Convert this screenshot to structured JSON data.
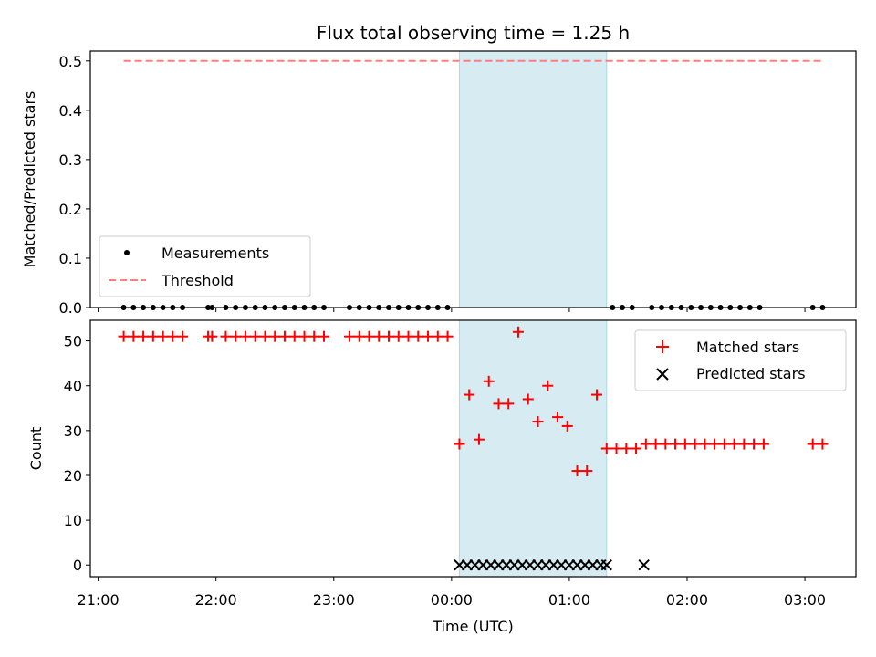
{
  "chart_data": [
    {
      "type": "scatter",
      "title": "Flux total observing time = 1.25 h",
      "ylabel": "Matched/Predicted stars",
      "ylim": [
        0,
        0.52
      ],
      "xlim": [
        "20:56",
        "03:26"
      ],
      "yticks": [
        {
          "value": 0.0,
          "label": "0.0"
        },
        {
          "value": 0.1,
          "label": "0.1"
        },
        {
          "value": 0.2,
          "label": "0.2"
        },
        {
          "value": 0.3,
          "label": "0.3"
        },
        {
          "value": 0.4,
          "label": "0.4"
        },
        {
          "value": 0.5,
          "label": "0.5"
        }
      ],
      "shaded_interval": {
        "start": "00:04",
        "end": "01:19",
        "color": "#add8e6"
      },
      "series": [
        {
          "name": "Measurements",
          "marker": "dot",
          "color": "#000000",
          "points": [
            {
              "x": "21:13",
              "y": 0
            },
            {
              "x": "21:18",
              "y": 0
            },
            {
              "x": "21:23",
              "y": 0
            },
            {
              "x": "21:28",
              "y": 0
            },
            {
              "x": "21:33",
              "y": 0
            },
            {
              "x": "21:38",
              "y": 0
            },
            {
              "x": "21:43",
              "y": 0
            },
            {
              "x": "21:56",
              "y": 0
            },
            {
              "x": "21:58",
              "y": 0
            },
            {
              "x": "22:05",
              "y": 0
            },
            {
              "x": "22:10",
              "y": 0
            },
            {
              "x": "22:15",
              "y": 0
            },
            {
              "x": "22:20",
              "y": 0
            },
            {
              "x": "22:25",
              "y": 0
            },
            {
              "x": "22:30",
              "y": 0
            },
            {
              "x": "22:35",
              "y": 0
            },
            {
              "x": "22:40",
              "y": 0
            },
            {
              "x": "22:45",
              "y": 0
            },
            {
              "x": "22:50",
              "y": 0
            },
            {
              "x": "22:55",
              "y": 0
            },
            {
              "x": "23:08",
              "y": 0
            },
            {
              "x": "23:13",
              "y": 0
            },
            {
              "x": "23:18",
              "y": 0
            },
            {
              "x": "23:23",
              "y": 0
            },
            {
              "x": "23:28",
              "y": 0
            },
            {
              "x": "23:33",
              "y": 0
            },
            {
              "x": "23:38",
              "y": 0
            },
            {
              "x": "23:43",
              "y": 0
            },
            {
              "x": "23:48",
              "y": 0
            },
            {
              "x": "23:53",
              "y": 0
            },
            {
              "x": "23:58",
              "y": 0
            },
            {
              "x": "01:22",
              "y": 0
            },
            {
              "x": "01:27",
              "y": 0
            },
            {
              "x": "01:32",
              "y": 0
            },
            {
              "x": "01:42",
              "y": 0
            },
            {
              "x": "01:47",
              "y": 0
            },
            {
              "x": "01:52",
              "y": 0
            },
            {
              "x": "01:57",
              "y": 0
            },
            {
              "x": "02:02",
              "y": 0
            },
            {
              "x": "02:07",
              "y": 0
            },
            {
              "x": "02:12",
              "y": 0
            },
            {
              "x": "02:17",
              "y": 0
            },
            {
              "x": "02:22",
              "y": 0
            },
            {
              "x": "02:27",
              "y": 0
            },
            {
              "x": "02:32",
              "y": 0
            },
            {
              "x": "02:37",
              "y": 0
            },
            {
              "x": "03:04",
              "y": 0
            },
            {
              "x": "03:09",
              "y": 0
            }
          ]
        },
        {
          "name": "Threshold",
          "marker": "dashed-line",
          "color": "#ff7f7f",
          "points": [
            {
              "x": "21:13",
              "y": 0.5
            },
            {
              "x": "03:09",
              "y": 0.5
            }
          ]
        }
      ],
      "legend": {
        "position": "lower-left"
      }
    },
    {
      "type": "scatter",
      "xlabel": "Time (UTC)",
      "ylabel": "Count",
      "ylim": [
        -2.6,
        54.6
      ],
      "xlim": [
        "20:56",
        "03:26"
      ],
      "yticks": [
        {
          "value": 0,
          "label": "0"
        },
        {
          "value": 10,
          "label": "10"
        },
        {
          "value": 20,
          "label": "20"
        },
        {
          "value": 30,
          "label": "30"
        },
        {
          "value": 40,
          "label": "40"
        },
        {
          "value": 50,
          "label": "50"
        }
      ],
      "xticks": [
        {
          "value": "21:00",
          "label": "21:00"
        },
        {
          "value": "22:00",
          "label": "22:00"
        },
        {
          "value": "23:00",
          "label": "23:00"
        },
        {
          "value": "00:00",
          "label": "00:00"
        },
        {
          "value": "01:00",
          "label": "01:00"
        },
        {
          "value": "02:00",
          "label": "02:00"
        },
        {
          "value": "03:00",
          "label": "03:00"
        }
      ],
      "shaded_interval": {
        "start": "00:04",
        "end": "01:19",
        "color": "#add8e6"
      },
      "series": [
        {
          "name": "Matched stars",
          "marker": "plus",
          "color": "#ff0000",
          "points": [
            {
              "x": "21:13",
              "y": 51
            },
            {
              "x": "21:18",
              "y": 51
            },
            {
              "x": "21:23",
              "y": 51
            },
            {
              "x": "21:28",
              "y": 51
            },
            {
              "x": "21:33",
              "y": 51
            },
            {
              "x": "21:38",
              "y": 51
            },
            {
              "x": "21:43",
              "y": 51
            },
            {
              "x": "21:56",
              "y": 51
            },
            {
              "x": "21:58",
              "y": 51
            },
            {
              "x": "22:05",
              "y": 51
            },
            {
              "x": "22:10",
              "y": 51
            },
            {
              "x": "22:15",
              "y": 51
            },
            {
              "x": "22:20",
              "y": 51
            },
            {
              "x": "22:25",
              "y": 51
            },
            {
              "x": "22:30",
              "y": 51
            },
            {
              "x": "22:35",
              "y": 51
            },
            {
              "x": "22:40",
              "y": 51
            },
            {
              "x": "22:45",
              "y": 51
            },
            {
              "x": "22:50",
              "y": 51
            },
            {
              "x": "22:55",
              "y": 51
            },
            {
              "x": "23:08",
              "y": 51
            },
            {
              "x": "23:13",
              "y": 51
            },
            {
              "x": "23:18",
              "y": 51
            },
            {
              "x": "23:23",
              "y": 51
            },
            {
              "x": "23:28",
              "y": 51
            },
            {
              "x": "23:33",
              "y": 51
            },
            {
              "x": "23:38",
              "y": 51
            },
            {
              "x": "23:43",
              "y": 51
            },
            {
              "x": "23:48",
              "y": 51
            },
            {
              "x": "23:53",
              "y": 51
            },
            {
              "x": "23:58",
              "y": 51
            },
            {
              "x": "00:04",
              "y": 27
            },
            {
              "x": "00:09",
              "y": 38
            },
            {
              "x": "00:14",
              "y": 28
            },
            {
              "x": "00:19",
              "y": 41
            },
            {
              "x": "00:24",
              "y": 36
            },
            {
              "x": "00:29",
              "y": 36
            },
            {
              "x": "00:34",
              "y": 52
            },
            {
              "x": "00:39",
              "y": 37
            },
            {
              "x": "00:44",
              "y": 32
            },
            {
              "x": "00:49",
              "y": 40
            },
            {
              "x": "00:54",
              "y": 33
            },
            {
              "x": "00:59",
              "y": 31
            },
            {
              "x": "01:04",
              "y": 21
            },
            {
              "x": "01:09",
              "y": 21
            },
            {
              "x": "01:14",
              "y": 38
            },
            {
              "x": "01:19",
              "y": 26
            },
            {
              "x": "01:24",
              "y": 26
            },
            {
              "x": "01:29",
              "y": 26
            },
            {
              "x": "01:34",
              "y": 26
            },
            {
              "x": "01:39",
              "y": 27
            },
            {
              "x": "01:44",
              "y": 27
            },
            {
              "x": "01:49",
              "y": 27
            },
            {
              "x": "01:54",
              "y": 27
            },
            {
              "x": "01:59",
              "y": 27
            },
            {
              "x": "02:04",
              "y": 27
            },
            {
              "x": "02:09",
              "y": 27
            },
            {
              "x": "02:14",
              "y": 27
            },
            {
              "x": "02:19",
              "y": 27
            },
            {
              "x": "02:24",
              "y": 27
            },
            {
              "x": "02:29",
              "y": 27
            },
            {
              "x": "02:34",
              "y": 27
            },
            {
              "x": "02:39",
              "y": 27
            },
            {
              "x": "03:04",
              "y": 27
            },
            {
              "x": "03:09",
              "y": 27
            }
          ]
        },
        {
          "name": "Predicted stars",
          "marker": "x",
          "color": "#000000",
          "points": [
            {
              "x": "00:04",
              "y": 0
            },
            {
              "x": "00:08",
              "y": 0
            },
            {
              "x": "00:12",
              "y": 0
            },
            {
              "x": "00:16",
              "y": 0
            },
            {
              "x": "00:20",
              "y": 0
            },
            {
              "x": "00:24",
              "y": 0
            },
            {
              "x": "00:28",
              "y": 0
            },
            {
              "x": "00:32",
              "y": 0
            },
            {
              "x": "00:36",
              "y": 0
            },
            {
              "x": "00:40",
              "y": 0
            },
            {
              "x": "00:44",
              "y": 0
            },
            {
              "x": "00:48",
              "y": 0
            },
            {
              "x": "00:52",
              "y": 0
            },
            {
              "x": "00:56",
              "y": 0
            },
            {
              "x": "01:00",
              "y": 0
            },
            {
              "x": "01:04",
              "y": 0
            },
            {
              "x": "01:08",
              "y": 0
            },
            {
              "x": "01:12",
              "y": 0
            },
            {
              "x": "01:16",
              "y": 0
            },
            {
              "x": "01:19",
              "y": 0
            },
            {
              "x": "01:38",
              "y": 0
            }
          ]
        }
      ],
      "legend": {
        "position": "upper-right"
      }
    }
  ]
}
